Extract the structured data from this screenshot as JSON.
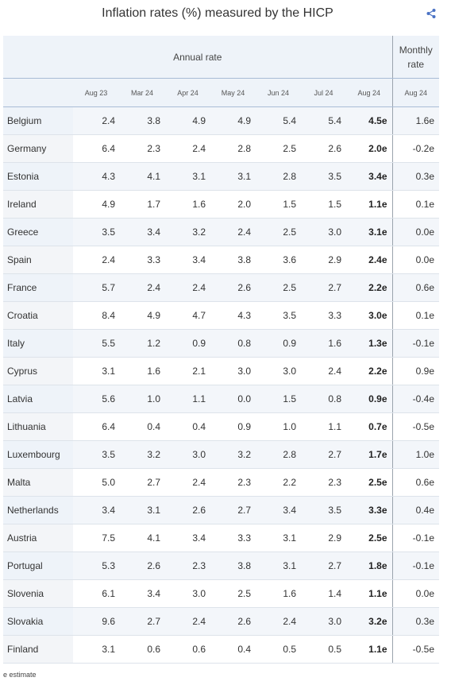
{
  "title": "Inflation rates (%) measured by the HICP",
  "share_icon": "share-icon",
  "group_headers": {
    "annual": "Annual rate",
    "monthly_line1": "Monthly",
    "monthly_line2": "rate"
  },
  "columns": [
    "Aug 23",
    "Mar 24",
    "Apr 24",
    "May 24",
    "Jun 24",
    "Jul 24",
    "Aug 24",
    "Aug 24"
  ],
  "rows": [
    {
      "country": "Belgium",
      "values": [
        "2.4",
        "3.8",
        "4.9",
        "4.9",
        "5.4",
        "5.4",
        "4.5e",
        "1.6e"
      ]
    },
    {
      "country": "Germany",
      "values": [
        "6.4",
        "2.3",
        "2.4",
        "2.8",
        "2.5",
        "2.6",
        "2.0e",
        "-0.2e"
      ]
    },
    {
      "country": "Estonia",
      "values": [
        "4.3",
        "4.1",
        "3.1",
        "3.1",
        "2.8",
        "3.5",
        "3.4e",
        "0.3e"
      ]
    },
    {
      "country": "Ireland",
      "values": [
        "4.9",
        "1.7",
        "1.6",
        "2.0",
        "1.5",
        "1.5",
        "1.1e",
        "0.1e"
      ]
    },
    {
      "country": "Greece",
      "values": [
        "3.5",
        "3.4",
        "3.2",
        "2.4",
        "2.5",
        "3.0",
        "3.1e",
        "0.0e"
      ]
    },
    {
      "country": "Spain",
      "values": [
        "2.4",
        "3.3",
        "3.4",
        "3.8",
        "3.6",
        "2.9",
        "2.4e",
        "0.0e"
      ]
    },
    {
      "country": "France",
      "values": [
        "5.7",
        "2.4",
        "2.4",
        "2.6",
        "2.5",
        "2.7",
        "2.2e",
        "0.6e"
      ]
    },
    {
      "country": "Croatia",
      "values": [
        "8.4",
        "4.9",
        "4.7",
        "4.3",
        "3.5",
        "3.3",
        "3.0e",
        "0.1e"
      ]
    },
    {
      "country": "Italy",
      "values": [
        "5.5",
        "1.2",
        "0.9",
        "0.8",
        "0.9",
        "1.6",
        "1.3e",
        "-0.1e"
      ]
    },
    {
      "country": "Cyprus",
      "values": [
        "3.1",
        "1.6",
        "2.1",
        "3.0",
        "3.0",
        "2.4",
        "2.2e",
        "0.9e"
      ]
    },
    {
      "country": "Latvia",
      "values": [
        "5.6",
        "1.0",
        "1.1",
        "0.0",
        "1.5",
        "0.8",
        "0.9e",
        "-0.4e"
      ]
    },
    {
      "country": "Lithuania",
      "values": [
        "6.4",
        "0.4",
        "0.4",
        "0.9",
        "1.0",
        "1.1",
        "0.7e",
        "-0.5e"
      ]
    },
    {
      "country": "Luxembourg",
      "values": [
        "3.5",
        "3.2",
        "3.0",
        "3.2",
        "2.8",
        "2.7",
        "1.7e",
        "1.0e"
      ]
    },
    {
      "country": "Malta",
      "values": [
        "5.0",
        "2.7",
        "2.4",
        "2.3",
        "2.2",
        "2.3",
        "2.5e",
        "0.6e"
      ]
    },
    {
      "country": "Netherlands",
      "values": [
        "3.4",
        "3.1",
        "2.6",
        "2.7",
        "3.4",
        "3.5",
        "3.3e",
        "0.4e"
      ]
    },
    {
      "country": "Austria",
      "values": [
        "7.5",
        "4.1",
        "3.4",
        "3.3",
        "3.1",
        "2.9",
        "2.5e",
        "-0.1e"
      ]
    },
    {
      "country": "Portugal",
      "values": [
        "5.3",
        "2.6",
        "2.3",
        "3.8",
        "3.1",
        "2.7",
        "1.8e",
        "-0.1e"
      ]
    },
    {
      "country": "Slovenia",
      "values": [
        "6.1",
        "3.4",
        "3.0",
        "2.5",
        "1.6",
        "1.4",
        "1.1e",
        "0.0e"
      ]
    },
    {
      "country": "Slovakia",
      "values": [
        "9.6",
        "2.7",
        "2.4",
        "2.6",
        "2.4",
        "3.0",
        "3.2e",
        "0.3e"
      ]
    },
    {
      "country": "Finland",
      "values": [
        "3.1",
        "0.6",
        "0.6",
        "0.4",
        "0.5",
        "0.5",
        "1.1e",
        "-0.5e"
      ]
    }
  ],
  "footnote": "e estimate",
  "colors": {
    "header_bg": "#eef3f9",
    "stripe_bg": "#f3f6fa",
    "divider": "#9aa3ad",
    "accent": "#4a72c4"
  }
}
